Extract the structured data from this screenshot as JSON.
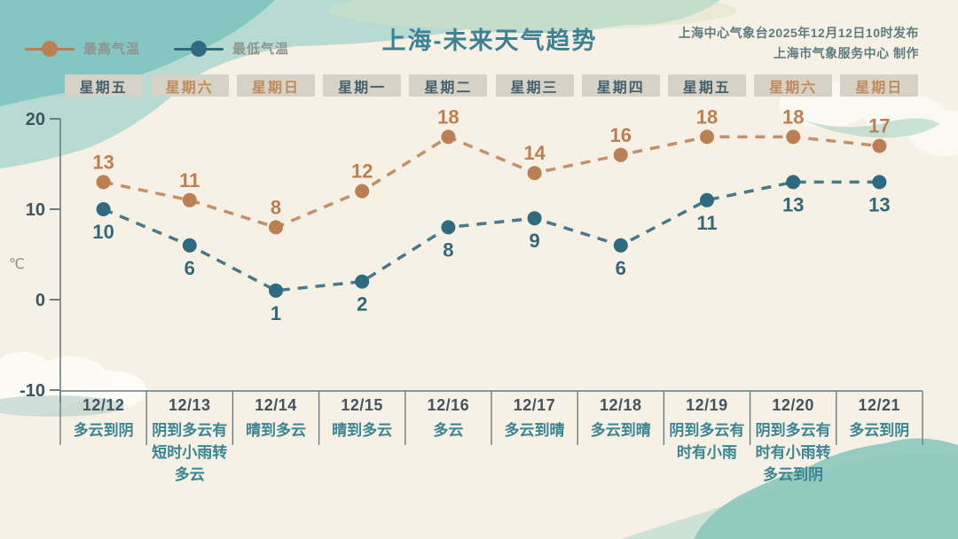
{
  "header": {
    "title": "上海-未来天气趋势",
    "published": "上海中心气象台2025年12月12日10时发布",
    "producer": "上海市气象服务中心 制作"
  },
  "legend": {
    "high_label": "最高气温",
    "low_label": "最低气温"
  },
  "colors": {
    "background": "#f6f1e4",
    "high": "#bc7e53",
    "high_label": "#bd7f52",
    "low": "#2f6b80",
    "low_label": "#33687b",
    "axis": "#6c7c80",
    "tick_label": "#3e5560",
    "title": "#3c8294",
    "weekday_text": "#46606d",
    "weekend_text": "#c08a5d",
    "weather_text": "#3a8593",
    "date_text": "#45535e",
    "unit_label": "#8a9089"
  },
  "chart_data": {
    "type": "line",
    "title": "上海-未来天气趋势",
    "x_dates": [
      "12/12",
      "12/13",
      "12/14",
      "12/15",
      "12/16",
      "12/17",
      "12/18",
      "12/19",
      "12/20",
      "12/21"
    ],
    "x_weekdays": [
      "星期五",
      "星期六",
      "星期日",
      "星期一",
      "星期二",
      "星期三",
      "星期四",
      "星期五",
      "星期六",
      "星期日"
    ],
    "weekend_indices": [
      1,
      2,
      8,
      9
    ],
    "ylabel": "℃",
    "yticks": [
      20,
      10,
      0,
      -10
    ],
    "ylim": [
      -10,
      20
    ],
    "grid": false,
    "legend_position": "top-left",
    "line_style": "dashed",
    "series": [
      {
        "name": "最高气温",
        "values": [
          13,
          11,
          8,
          12,
          18,
          14,
          16,
          18,
          18,
          17
        ],
        "color": "#bc7e53",
        "line_color": "#c08a63",
        "label_color": "#bd7f52",
        "label_position": "above"
      },
      {
        "name": "最低气温",
        "values": [
          10,
          6,
          1,
          2,
          8,
          9,
          6,
          11,
          13,
          13
        ],
        "color": "#2f6b80",
        "line_color": "#3f7183",
        "label_color": "#33687b",
        "label_position": "below"
      }
    ],
    "weather": [
      "多云到阴",
      "阴到多云有短时小雨转多云",
      "晴到多云",
      "晴到多云",
      "多云",
      "多云到晴",
      "多云到晴",
      "阴到多云有时有小雨",
      "阴到多云有时有小雨转多云到阴",
      "多云到阴"
    ]
  }
}
